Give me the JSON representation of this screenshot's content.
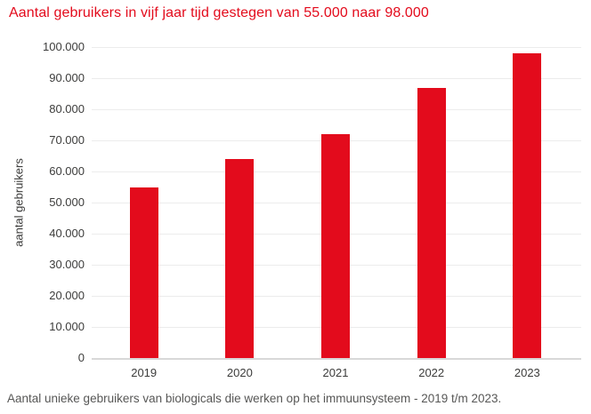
{
  "header": {
    "title": "Aantal gebruikers in vijf jaar tijd gestegen van 55.000 naar 98.000"
  },
  "footer": {
    "caption": "Aantal unieke gebruikers van biologicals die werken op het immuunsysteem - 2019 t/m 2023."
  },
  "colors": {
    "accent_red": "#e30b1c",
    "grid_line": "#ececec",
    "axis_line": "#d8d8d8",
    "tick_text": "#3c3c3b",
    "footer_text": "#575756",
    "background": "#ffffff"
  },
  "chart_data": {
    "type": "bar",
    "title": "Aantal gebruikers in vijf jaar tijd gestegen van 55.000 naar 98.000",
    "categories": [
      "2019",
      "2020",
      "2021",
      "2022",
      "2023"
    ],
    "values": [
      55000,
      64000,
      72000,
      87000,
      98000
    ],
    "xlabel": "",
    "ylabel": "aantal gebruikers",
    "ylim": [
      0,
      100000
    ],
    "ytick_step": 10000,
    "ytick_labels": [
      "0",
      "10.000",
      "20.000",
      "30.000",
      "40.000",
      "50.000",
      "60.000",
      "70.000",
      "80.000",
      "90.000",
      "100.000"
    ],
    "grid": true,
    "legend": false,
    "bar_color": "#e30b1c",
    "caption": "Aantal unieke gebruikers van biologicals die werken op het immuunsysteem - 2019 t/m 2023."
  }
}
